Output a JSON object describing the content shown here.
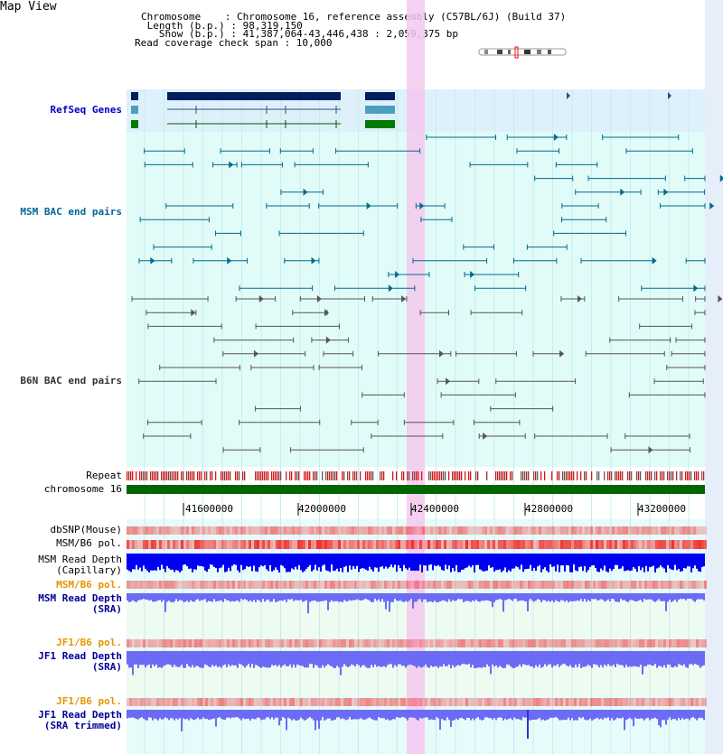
{
  "title": "Map View",
  "info": {
    "chromosome": "Chromosome    : Chromosome 16, reference assembly (C57BL/6J) (Build 37)",
    "length": " Length (b.p.) : 98,319,150",
    "show": "   Show (b.p.) : 41,387,064-43,446,438 : 2,059,375 bp",
    "coverage": "Read coverage check span : 10,000"
  },
  "tracks": {
    "refseq": "RefSeq Genes",
    "msm_bac": "MSM BAC end pairs",
    "b6n_bac": "B6N BAC end pairs",
    "repeat": "Repeat",
    "chromosome": "chromosome 16",
    "dbsnp": "dbSNP(Mouse)",
    "msm_b6_pol": "MSM/B6 pol.",
    "msm_depth_cap": "MSM Read Depth\n(Capillary)",
    "msm_b6_pol2": "MSM/B6 pol.",
    "msm_depth_sra": "MSM Read Depth\n(SRA)",
    "jf1_b6_pol": "JF1/B6 pol.",
    "jf1_depth_sra": "JF1 Read Depth\n(SRA)",
    "jf1_b6_pol2": "JF1/B6 pol.",
    "jf1_depth_trim": "JF1 Read Depth\n(SRA trimmed)"
  },
  "axis": {
    "ticks": [
      "41600000",
      "42000000",
      "42400000",
      "42800000",
      "43200000"
    ]
  },
  "colors": {
    "refseq_label": "#0000cc",
    "msm_label": "#006699",
    "b6n_label": "#333333",
    "pol_label": "#e69500",
    "depth_label": "#000099",
    "chromosome_bar": "#006600",
    "highlight": "#f5c8ef",
    "refseq_bg": "#def1fa",
    "bac_bg": "#e1fbf8",
    "msm_feature": "#006b8f",
    "b6n_feature": "#555555",
    "depth_cap": "#0000f0",
    "depth_sra": "#6b6bf5",
    "pol_red": "#f03030"
  }
}
